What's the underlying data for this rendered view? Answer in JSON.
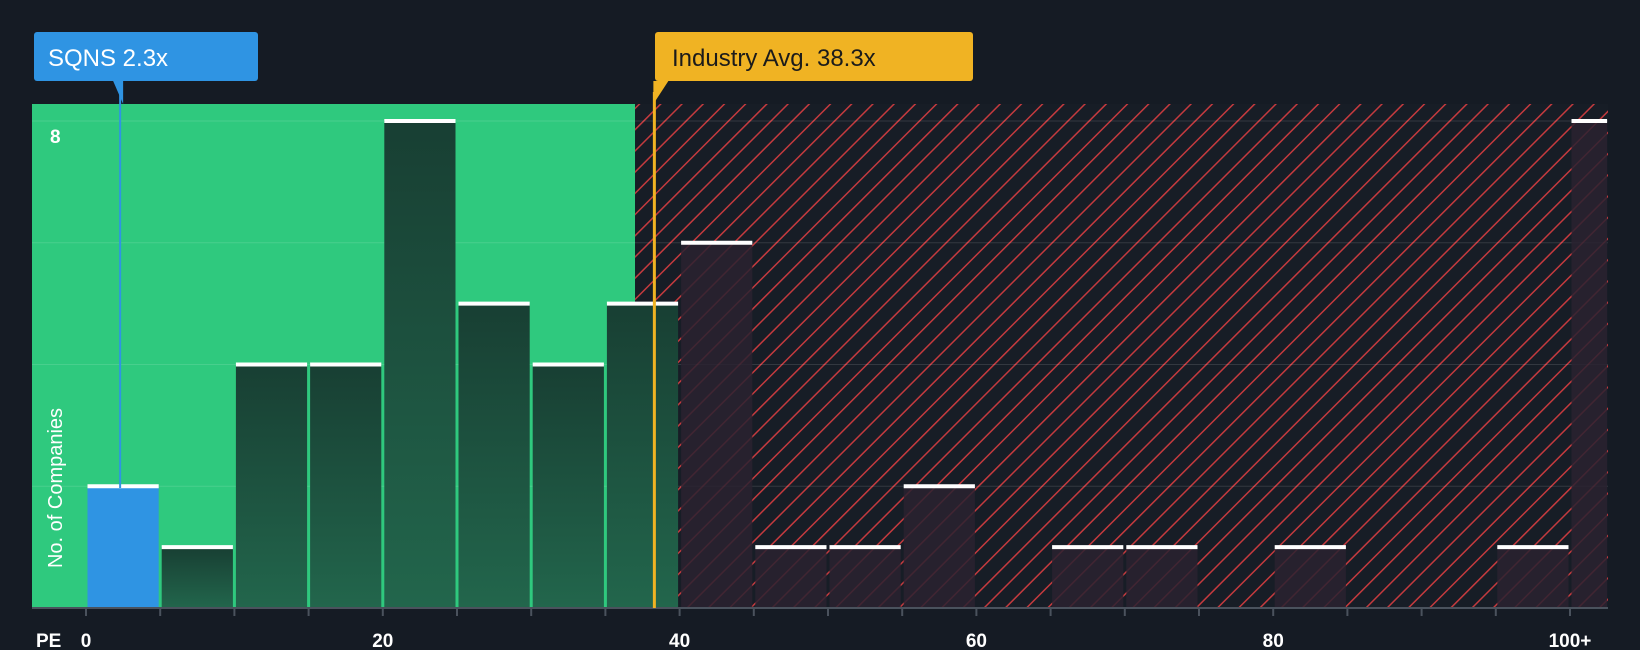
{
  "chart_data": {
    "type": "bar",
    "x_label": "PE",
    "ylabel": "No. of Companies",
    "y_tick": "8",
    "x_ticks": [
      "0",
      "20",
      "40",
      "60",
      "80",
      "100+"
    ],
    "x_tick_values": [
      0,
      20,
      40,
      60,
      80,
      100
    ],
    "ylim": [
      0,
      8
    ],
    "bins": [
      {
        "start": 0,
        "end": 5,
        "count": 2
      },
      {
        "start": 5,
        "end": 10,
        "count": 1
      },
      {
        "start": 10,
        "end": 15,
        "count": 4
      },
      {
        "start": 15,
        "end": 20,
        "count": 4
      },
      {
        "start": 20,
        "end": 25,
        "count": 8
      },
      {
        "start": 25,
        "end": 30,
        "count": 5
      },
      {
        "start": 30,
        "end": 35,
        "count": 4
      },
      {
        "start": 35,
        "end": 40,
        "count": 5
      },
      {
        "start": 40,
        "end": 45,
        "count": 6
      },
      {
        "start": 45,
        "end": 50,
        "count": 1
      },
      {
        "start": 50,
        "end": 55,
        "count": 1
      },
      {
        "start": 55,
        "end": 60,
        "count": 2
      },
      {
        "start": 60,
        "end": 65,
        "count": 0
      },
      {
        "start": 65,
        "end": 70,
        "count": 1
      },
      {
        "start": 70,
        "end": 75,
        "count": 1
      },
      {
        "start": 75,
        "end": 80,
        "count": 0
      },
      {
        "start": 80,
        "end": 85,
        "count": 1
      },
      {
        "start": 85,
        "end": 90,
        "count": 0
      },
      {
        "start": 90,
        "end": 95,
        "count": 0
      },
      {
        "start": 95,
        "end": 100,
        "count": 1
      },
      {
        "start": 100,
        "end": 102.6,
        "count": 8
      }
    ],
    "company": {
      "label": "SQNS 2.3x",
      "value": 2.3,
      "color": "#2f94e3"
    },
    "industry_avg": {
      "label": "Industry Avg. 38.3x",
      "value": 38.3,
      "color": "#f0b323"
    },
    "fair_zone_end": 37,
    "colors": {
      "background": "#151b24",
      "fair_zone": "#2fc97e",
      "overvalued_hatch": "#c43a3e",
      "bar_in_green": "#1a4d3b",
      "bar_in_red": "#2a1e26",
      "bar_top": "#ffffff"
    }
  }
}
